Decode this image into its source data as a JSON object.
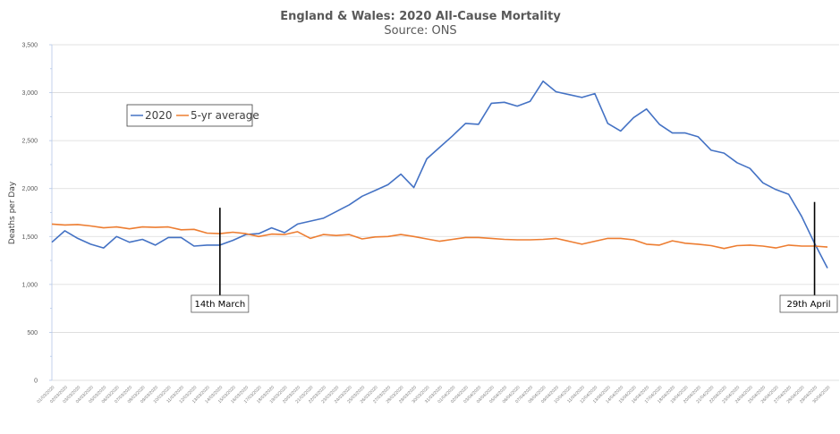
{
  "chart_data": {
    "type": "line",
    "title": "England & Wales: 2020 All-Cause Mortality",
    "subtitle": "Source: ONS",
    "xlabel": "",
    "ylabel": "Deaths per Day",
    "ylim": [
      0,
      3500
    ],
    "yticks": [
      0,
      500,
      1000,
      1500,
      2000,
      2500,
      3000,
      3500
    ],
    "ytick_labels": [
      "0",
      "500",
      "1,000",
      "1,500",
      "2,000",
      "2,500",
      "3,000",
      "3,500"
    ],
    "grid": true,
    "legend_position": "top-left",
    "x": [
      "01/03/2020",
      "02/03/2020",
      "03/03/2020",
      "04/03/2020",
      "05/03/2020",
      "06/03/2020",
      "07/03/2020",
      "08/03/2020",
      "09/03/2020",
      "10/03/2020",
      "11/03/2020",
      "12/03/2020",
      "13/03/2020",
      "14/03/2020",
      "15/03/2020",
      "16/03/2020",
      "17/03/2020",
      "18/03/2020",
      "19/03/2020",
      "20/03/2020",
      "21/03/2020",
      "22/03/2020",
      "23/03/2020",
      "24/03/2020",
      "25/03/2020",
      "26/03/2020",
      "27/03/2020",
      "28/03/2020",
      "29/03/2020",
      "30/03/2020",
      "31/03/2020",
      "01/04/2020",
      "02/04/2020",
      "03/04/2020",
      "04/04/2020",
      "05/04/2020",
      "06/04/2020",
      "07/04/2020",
      "08/04/2020",
      "09/04/2020",
      "10/04/2020",
      "11/04/2020",
      "12/04/2020",
      "13/04/2020",
      "14/04/2020",
      "15/04/2020",
      "16/04/2020",
      "17/04/2020",
      "18/04/2020",
      "19/04/2020",
      "20/04/2020",
      "21/04/2020",
      "22/04/2020",
      "23/04/2020",
      "24/04/2020",
      "25/04/2020",
      "26/04/2020",
      "27/04/2020",
      "28/04/2020",
      "29/04/2020",
      "30/04/2020"
    ],
    "series": [
      {
        "name": "2020",
        "color": "#4472c4",
        "values": [
          1440,
          1560,
          1480,
          1420,
          1380,
          1500,
          1440,
          1470,
          1410,
          1490,
          1490,
          1400,
          1410,
          1410,
          1460,
          1520,
          1530,
          1590,
          1540,
          1630,
          1660,
          1690,
          1760,
          1830,
          1920,
          1980,
          2040,
          2150,
          2010,
          2310,
          2430,
          2550,
          2680,
          2670,
          2890,
          2900,
          2860,
          2910,
          3120,
          3010,
          2980,
          2950,
          2990,
          2680,
          2600,
          2740,
          2830,
          2670,
          2580,
          2580,
          2540,
          2400,
          2370,
          2270,
          2210,
          2060,
          1990,
          1940,
          1710,
          1430,
          1170
        ]
      },
      {
        "name": "5-yr average",
        "color": "#ed7d31",
        "values": [
          1630,
          1620,
          1625,
          1610,
          1590,
          1600,
          1580,
          1600,
          1595,
          1600,
          1570,
          1575,
          1535,
          1530,
          1545,
          1530,
          1500,
          1525,
          1520,
          1550,
          1480,
          1520,
          1510,
          1520,
          1475,
          1495,
          1500,
          1520,
          1500,
          1475,
          1450,
          1470,
          1490,
          1490,
          1480,
          1470,
          1465,
          1465,
          1470,
          1480,
          1450,
          1420,
          1450,
          1480,
          1480,
          1465,
          1420,
          1410,
          1455,
          1430,
          1420,
          1405,
          1375,
          1405,
          1410,
          1400,
          1380,
          1410,
          1400,
          1400,
          1390
        ]
      }
    ],
    "annotations": [
      {
        "label": "14th March",
        "x": "14/03/2020",
        "line_top_value": 1800
      },
      {
        "label": "29th April",
        "x": "29/04/2020",
        "line_top_value": 1860
      }
    ]
  }
}
